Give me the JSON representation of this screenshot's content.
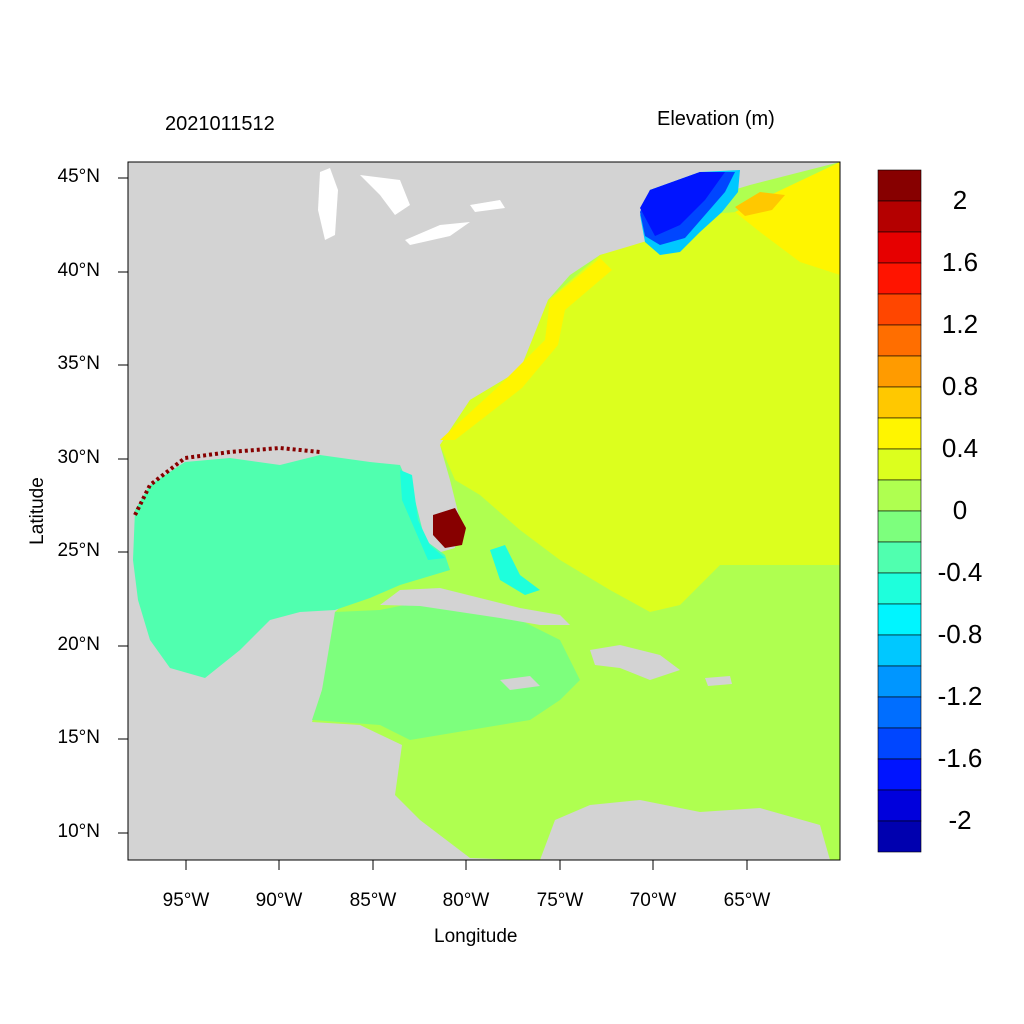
{
  "title_left": "2021011512",
  "title_right": "Elevation (m)",
  "xlabel": "Longitude",
  "ylabel": "Latitude",
  "lat_ticks": [
    "45°N",
    "40°N",
    "35°N",
    "30°N",
    "25°N",
    "20°N",
    "15°N",
    "10°N"
  ],
  "lon_ticks": [
    "95°W",
    "90°W",
    "85°W",
    "80°W",
    "75°W",
    "70°W",
    "65°W"
  ],
  "colorbar": {
    "labels": [
      "2",
      "1.6",
      "1.2",
      "0.8",
      "0.4",
      "0",
      "-0.4",
      "-0.8",
      "-1.2",
      "-1.6",
      "-2"
    ],
    "colors": [
      "#870000",
      "#B40000",
      "#E60000",
      "#FF1400",
      "#FF4600",
      "#FF6E00",
      "#FF9B00",
      "#FFC800",
      "#FFF500",
      "#DCFF1E",
      "#AFFF50",
      "#7DFF7D",
      "#50FFAF",
      "#1EFFDC",
      "#00F5FF",
      "#00C8FF",
      "#0096FF",
      "#006EFF",
      "#0046FF",
      "#0014FF",
      "#0000DC",
      "#0000AF"
    ]
  },
  "colors": {
    "land": "#D3D3D3",
    "lakes": "#FFFFFF"
  }
}
